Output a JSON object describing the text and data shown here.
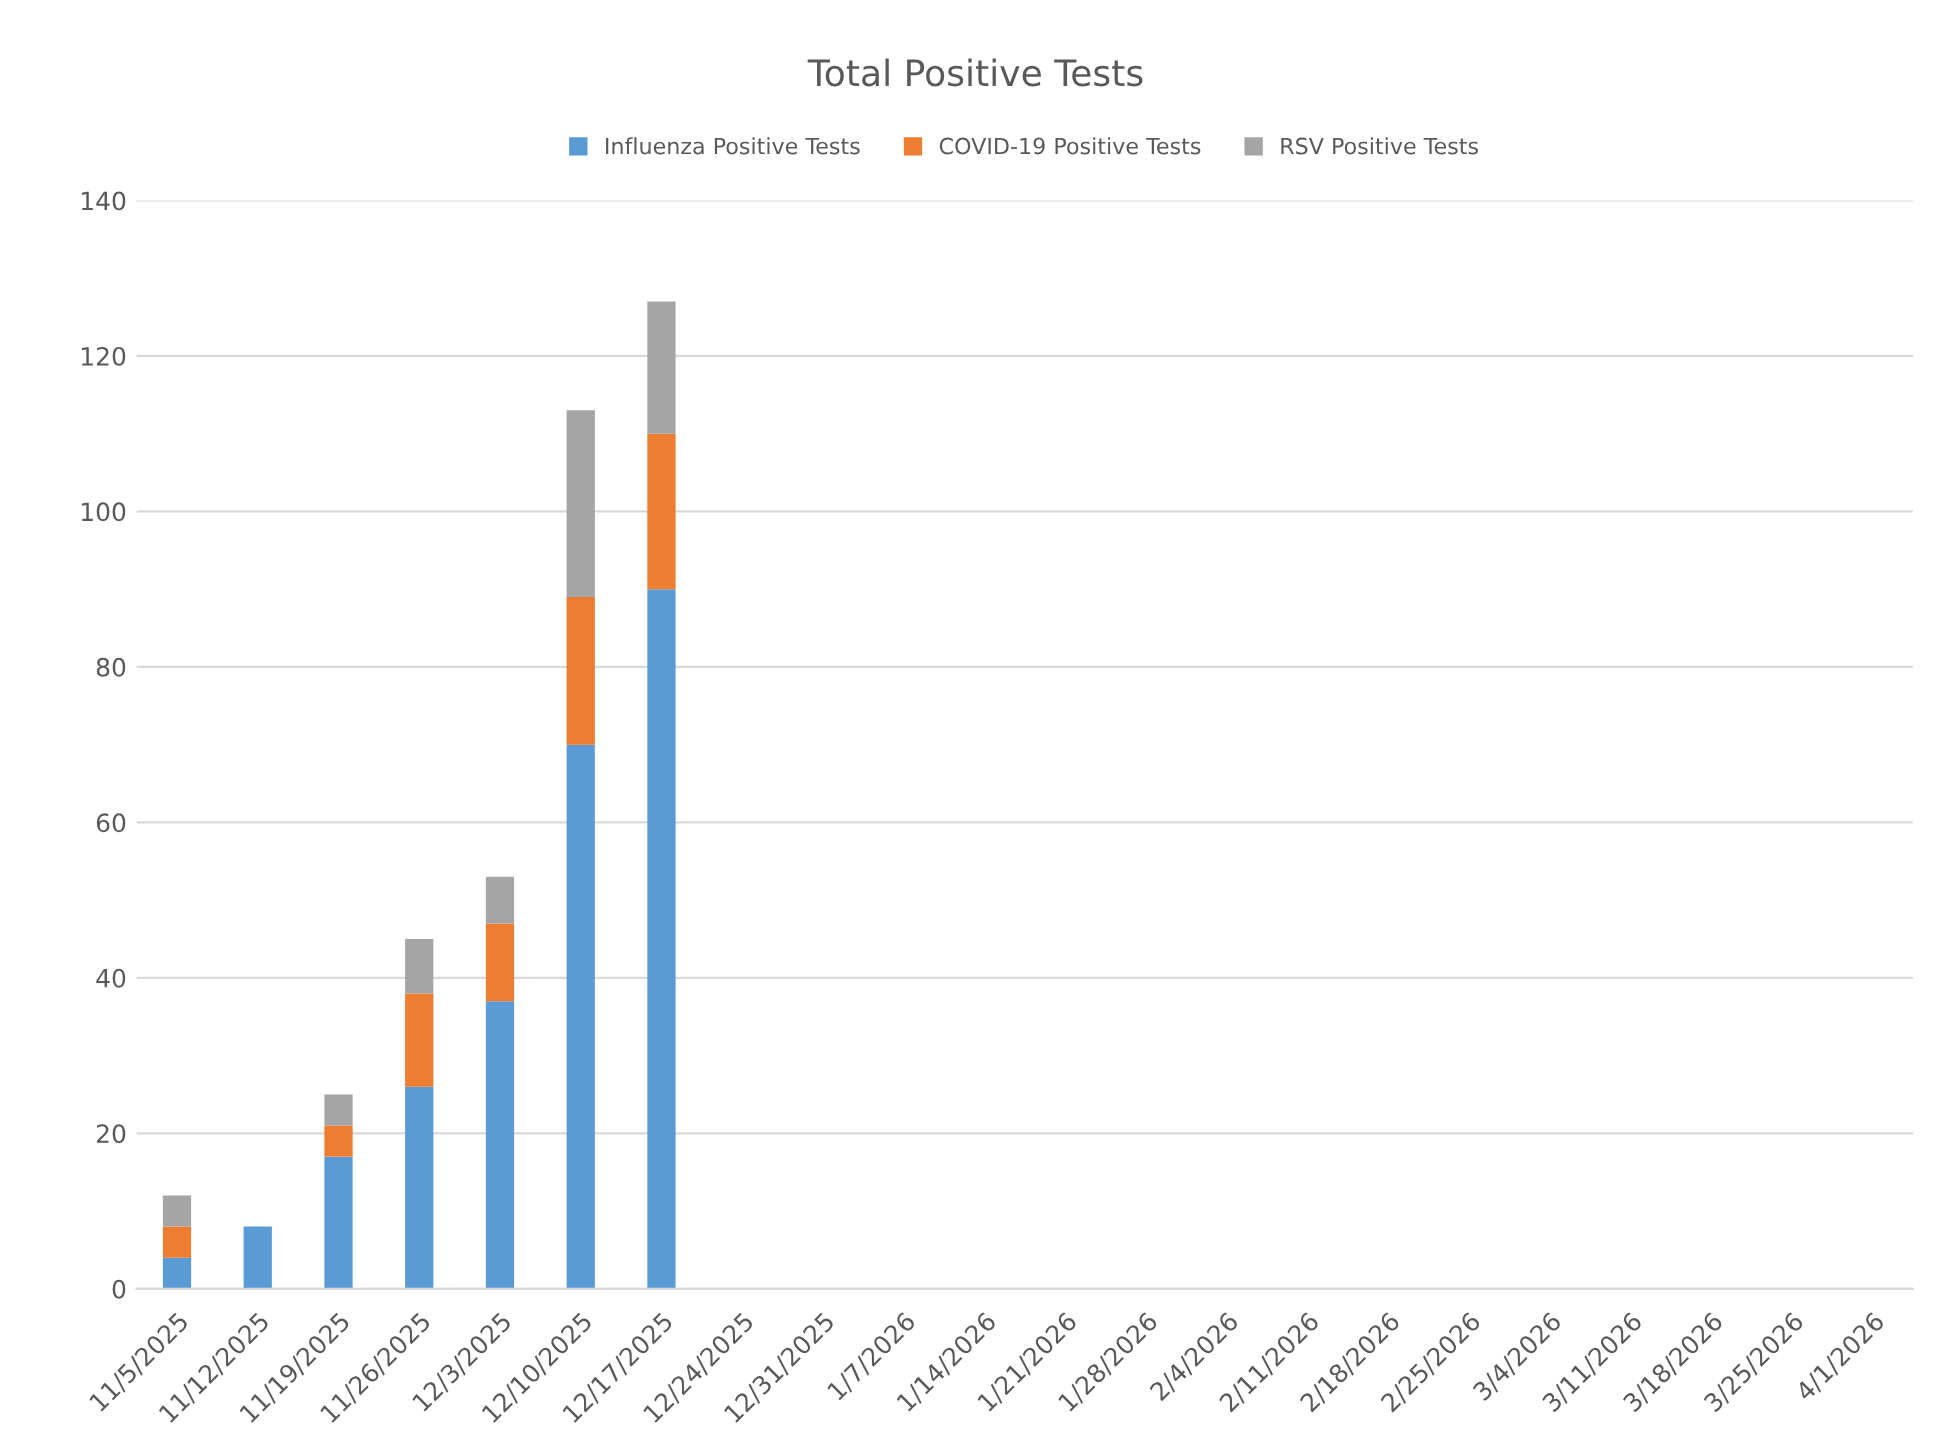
{
  "chart_data": {
    "type": "bar",
    "title": "Total Positive Tests",
    "stacked": true,
    "legend": "top",
    "grid": "y",
    "categories": [
      "11/5/2025",
      "11/12/2025",
      "11/19/2025",
      "11/26/2025",
      "12/3/2025",
      "12/10/2025",
      "12/17/2025",
      "12/24/2025",
      "12/31/2025",
      "1/7/2026",
      "1/14/2026",
      "1/21/2026",
      "1/28/2026",
      "2/4/2026",
      "2/11/2026",
      "2/18/2026",
      "2/25/2026",
      "3/4/2026",
      "3/11/2026",
      "3/18/2026",
      "3/25/2026",
      "4/1/2026"
    ],
    "series": [
      {
        "name": "Influenza Positive Tests",
        "color": "#5b9bd5",
        "values": [
          4,
          8,
          17,
          26,
          37,
          70,
          90,
          null,
          null,
          null,
          null,
          null,
          null,
          null,
          null,
          null,
          null,
          null,
          null,
          null,
          null,
          null
        ]
      },
      {
        "name": "COVID-19 Positive Tests",
        "color": "#ed7d31",
        "values": [
          4,
          0,
          4,
          12,
          10,
          19,
          20,
          null,
          null,
          null,
          null,
          null,
          null,
          null,
          null,
          null,
          null,
          null,
          null,
          null,
          null,
          null
        ]
      },
      {
        "name": "RSV Positive Tests",
        "color": "#a5a5a5",
        "values": [
          4,
          0,
          4,
          7,
          6,
          24,
          17,
          null,
          null,
          null,
          null,
          null,
          null,
          null,
          null,
          null,
          null,
          null,
          null,
          null,
          null,
          null
        ]
      }
    ],
    "ylim": [
      0,
      140
    ],
    "yticks": [
      0,
      20,
      40,
      60,
      80,
      100,
      120,
      140
    ]
  }
}
